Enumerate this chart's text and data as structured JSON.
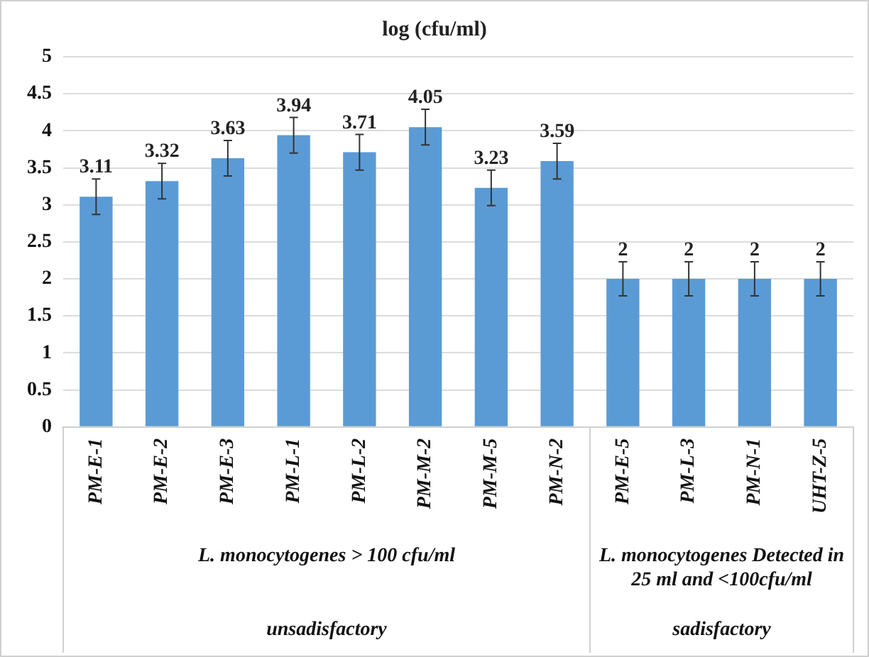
{
  "chart_data": {
    "type": "bar",
    "title": "log (cfu/ml)",
    "categories": [
      "PM-E-1",
      "PM-E-2",
      "PM-E-3",
      "PM-L-1",
      "PM-L-2",
      "PM-M-2",
      "PM-M-5",
      "PM-N-2",
      "PM-E-5",
      "PM-L-3",
      "PM-N-1",
      "UHT-Z-5"
    ],
    "values": [
      3.11,
      3.32,
      3.63,
      3.94,
      3.71,
      4.05,
      3.23,
      3.59,
      2,
      2,
      2,
      2
    ],
    "errors": [
      0.24,
      0.24,
      0.24,
      0.24,
      0.24,
      0.24,
      0.24,
      0.24,
      0.23,
      0.23,
      0.23,
      0.23
    ],
    "color": "#5b9bd5",
    "ylim": [
      0,
      5
    ],
    "yticks": [
      0,
      0.5,
      1,
      1.5,
      2,
      2.5,
      3,
      3.5,
      4,
      4.5,
      5
    ],
    "grid": "y",
    "legend": false,
    "data_labels": true,
    "annotations": [
      "L. monocytogenes > 100 cfu/ml",
      "L. monocytogenes Detected in 25 ml and <100cfu/ml",
      "unsadisfactory",
      "sadisfactory"
    ]
  }
}
